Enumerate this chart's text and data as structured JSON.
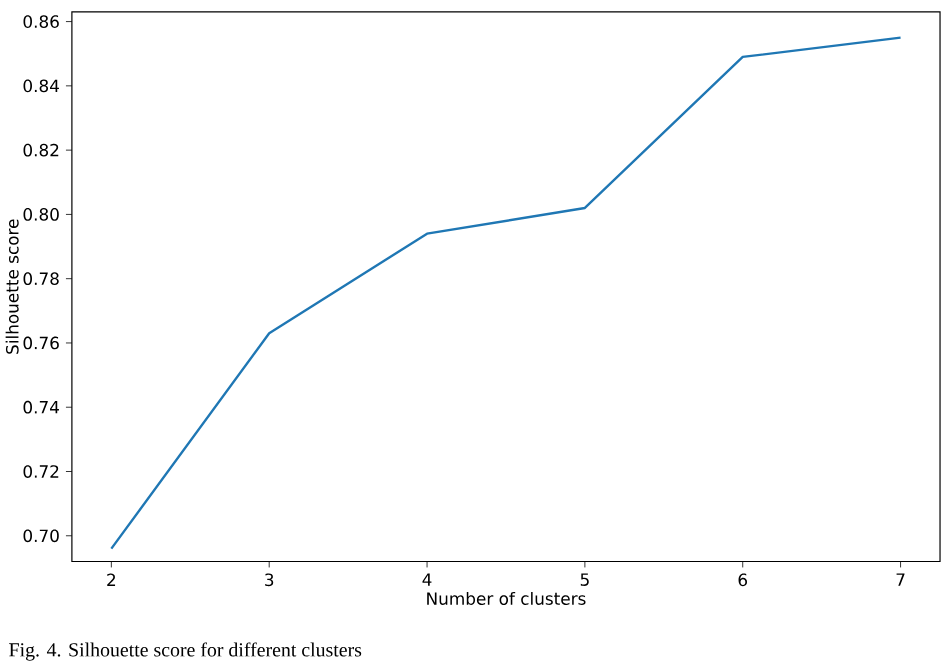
{
  "chart_data": {
    "type": "line",
    "xlabel": "Number of clusters",
    "ylabel": "Silhouette score",
    "x": [
      2,
      3,
      4,
      5,
      6,
      7
    ],
    "series": [
      {
        "color": "#1f77b4",
        "values": [
          0.696,
          0.763,
          0.794,
          0.802,
          0.849,
          0.855
        ]
      }
    ],
    "xlim": [
      1.75,
      7.25
    ],
    "xticks": [
      2,
      3,
      4,
      5,
      6,
      7
    ],
    "ylim": [
      0.692,
      0.863
    ],
    "yticks": [
      {
        "value": 0.7,
        "label": "0.70"
      },
      0.72,
      0.74,
      0.76,
      0.78,
      {
        "value": 0.8,
        "label": "0.80"
      },
      0.82,
      0.84,
      0.86
    ],
    "grid": false,
    "legend": false,
    "marker": "none",
    "line_style": "solid",
    "annotations": [
      "Fig. 4.  Silhouette score for different clusters"
    ]
  }
}
